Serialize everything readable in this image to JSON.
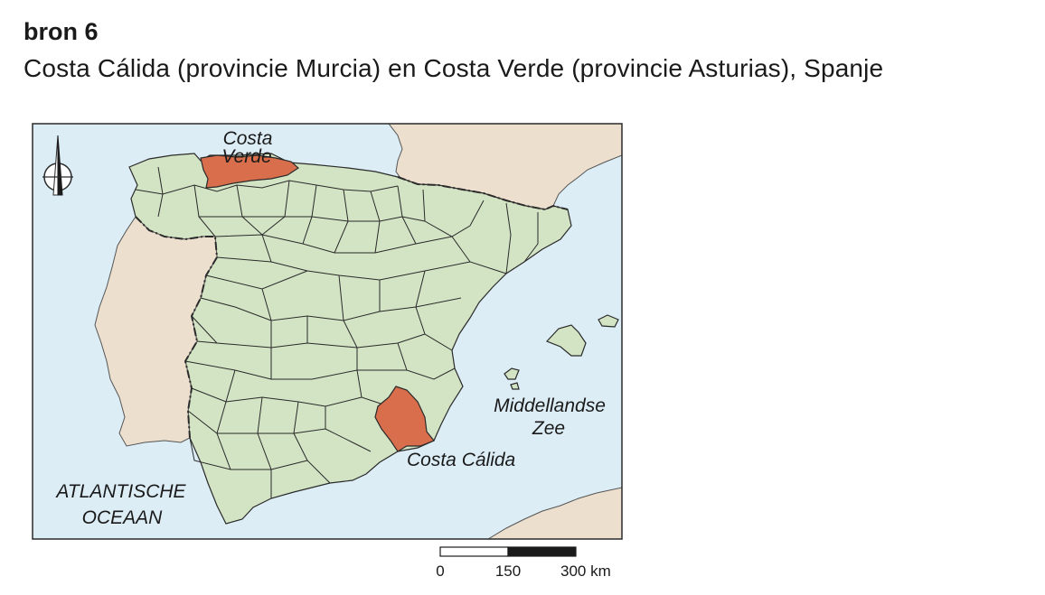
{
  "source": {
    "heading": "bron 6",
    "subtitle": "Costa Cálida (provincie Murcia) en Costa Verde (provincie Asturias), Spanje"
  },
  "map": {
    "labels": {
      "costa_verde_line1": "Costa",
      "costa_verde_line2": "Verde",
      "costa_calida": "Costa Cálida",
      "sea_line1": "Middellandse",
      "sea_line2": "Zee",
      "ocean_line1": "ATLANTISCHE",
      "ocean_line2": "OCEAAN"
    },
    "north_arrow_icon": "north-arrow-icon",
    "colors": {
      "sea": "#dcedf6",
      "neighbouring_land": "#ecdfce",
      "spain": "#d3e4c4",
      "highlight": "#d86e4b",
      "border": "#2a2a2a"
    }
  },
  "scale_bar": {
    "tick_0": "0",
    "tick_150": "150",
    "tick_300": "300 km"
  }
}
